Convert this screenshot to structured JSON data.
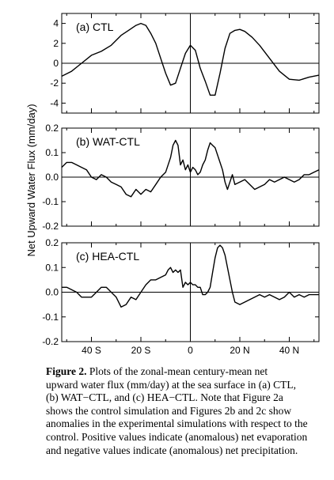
{
  "chart_data": [
    {
      "type": "line",
      "panel_label": "(a) CTL",
      "ylim": [
        -5,
        5
      ],
      "yticks": [
        -4,
        -2,
        0,
        2,
        4
      ],
      "ytick_labels": [
        "-4",
        "-2",
        "0",
        "2",
        "4"
      ],
      "xlim": [
        -52,
        52
      ],
      "series": [
        {
          "x": [
            -52,
            -48,
            -45,
            -40,
            -36,
            -32,
            -28,
            -25,
            -22,
            -20,
            -18,
            -16,
            -14,
            -12,
            -10,
            -8,
            -6,
            -4,
            -2,
            0,
            2,
            4,
            6,
            8,
            10,
            12,
            14,
            16,
            18,
            20,
            22,
            25,
            28,
            32,
            36,
            40,
            44,
            48,
            52
          ],
          "y": [
            -1.3,
            -0.8,
            -0.2,
            0.8,
            1.2,
            1.8,
            2.8,
            3.3,
            3.8,
            4.0,
            3.8,
            3.0,
            2.0,
            0.5,
            -1.0,
            -2.2,
            -2.0,
            -0.5,
            1.0,
            1.8,
            1.3,
            -0.5,
            -1.8,
            -3.2,
            -3.2,
            -1.0,
            1.5,
            3.0,
            3.3,
            3.4,
            3.2,
            2.6,
            1.8,
            0.5,
            -0.8,
            -1.6,
            -1.7,
            -1.4,
            -1.2
          ]
        }
      ]
    },
    {
      "type": "line",
      "panel_label": "(b) WAT-CTL",
      "ylim": [
        -0.2,
        0.2
      ],
      "yticks": [
        -0.2,
        -0.1,
        0.0,
        0.1,
        0.2
      ],
      "ytick_labels": [
        "-0.2",
        "-0.1",
        "0.0",
        "0.1",
        "0.2"
      ],
      "xlim": [
        -52,
        52
      ],
      "series": [
        {
          "x": [
            -52,
            -50,
            -48,
            -46,
            -44,
            -42,
            -40,
            -38,
            -36,
            -34,
            -32,
            -30,
            -28,
            -26,
            -24,
            -22,
            -20,
            -18,
            -16,
            -14,
            -12,
            -10,
            -8,
            -7,
            -6,
            -5,
            -4,
            -3,
            -2,
            -1,
            0,
            1,
            2,
            3,
            4,
            5,
            6,
            7,
            8,
            9,
            10,
            12,
            13,
            14,
            15,
            16,
            17,
            18,
            20,
            22,
            24,
            26,
            28,
            30,
            32,
            34,
            36,
            38,
            40,
            42,
            44,
            46,
            48,
            50,
            52
          ],
          "y": [
            0.04,
            0.06,
            0.06,
            0.05,
            0.04,
            0.03,
            0.0,
            -0.01,
            0.01,
            0.0,
            -0.02,
            -0.03,
            -0.04,
            -0.07,
            -0.08,
            -0.05,
            -0.07,
            -0.05,
            -0.06,
            -0.03,
            0.0,
            0.02,
            0.08,
            0.13,
            0.15,
            0.13,
            0.05,
            0.07,
            0.03,
            0.05,
            0.02,
            0.04,
            0.03,
            0.01,
            0.02,
            0.05,
            0.07,
            0.11,
            0.14,
            0.13,
            0.12,
            0.06,
            0.03,
            -0.02,
            -0.05,
            -0.02,
            0.01,
            -0.03,
            -0.02,
            -0.01,
            -0.03,
            -0.05,
            -0.04,
            -0.03,
            -0.01,
            -0.02,
            -0.01,
            0.0,
            -0.01,
            -0.02,
            -0.01,
            0.01,
            0.01,
            0.02,
            0.03
          ]
        }
      ]
    },
    {
      "type": "line",
      "panel_label": "(c) HEA-CTL",
      "ylim": [
        -0.2,
        0.2
      ],
      "yticks": [
        -0.2,
        -0.1,
        0.0,
        0.1,
        0.2
      ],
      "ytick_labels": [
        "-0.2",
        "-0.1",
        "0.0",
        "0.1",
        "0.2"
      ],
      "xlim": [
        -52,
        52
      ],
      "series": [
        {
          "x": [
            -52,
            -50,
            -48,
            -46,
            -44,
            -42,
            -40,
            -38,
            -36,
            -34,
            -32,
            -30,
            -28,
            -26,
            -24,
            -22,
            -20,
            -18,
            -16,
            -14,
            -12,
            -10,
            -9,
            -8,
            -7,
            -6,
            -5,
            -4,
            -3,
            -2,
            -1,
            0,
            1,
            2,
            3,
            4,
            5,
            6,
            7,
            8,
            9,
            10,
            11,
            12,
            13,
            14,
            15,
            16,
            17,
            18,
            20,
            22,
            24,
            26,
            28,
            30,
            32,
            34,
            36,
            38,
            40,
            42,
            44,
            46,
            48,
            50,
            52
          ],
          "y": [
            0.02,
            0.02,
            0.01,
            0.0,
            -0.02,
            -0.02,
            -0.02,
            0.0,
            0.02,
            0.02,
            0.0,
            -0.02,
            -0.06,
            -0.05,
            -0.02,
            -0.03,
            0.0,
            0.03,
            0.05,
            0.05,
            0.06,
            0.07,
            0.09,
            0.1,
            0.08,
            0.09,
            0.08,
            0.09,
            0.02,
            0.04,
            0.03,
            0.04,
            0.03,
            0.03,
            0.02,
            0.02,
            -0.01,
            -0.01,
            0.0,
            0.02,
            0.08,
            0.14,
            0.18,
            0.19,
            0.18,
            0.15,
            0.1,
            0.05,
            0.0,
            -0.04,
            -0.05,
            -0.04,
            -0.03,
            -0.02,
            -0.01,
            -0.02,
            -0.01,
            -0.02,
            -0.03,
            -0.02,
            0.0,
            -0.02,
            -0.01,
            -0.02,
            -0.01,
            -0.01,
            -0.01
          ]
        }
      ]
    }
  ],
  "x_axis": {
    "ticks": [
      -40,
      -20,
      0,
      20,
      40
    ],
    "tick_labels": [
      "40 S",
      "20 S",
      "0",
      "20 N",
      "40 N"
    ],
    "minor_ticks": [
      -50,
      -30,
      -10,
      10,
      30,
      50
    ]
  },
  "ylabel": "Net Upward Water Flux (mm/day)",
  "caption": {
    "label": "Figure 2.",
    "lines": [
      "Plots of the zonal-mean century-mean net",
      "upward water flux (mm/day) at the sea surface in (a) CTL,",
      "(b) WAT−CTL, and (c) HEA−CTL. Note that Figure 2a",
      "shows the control simulation and Figures 2b and 2c show",
      "anomalies in the experimental simulations with respect to the",
      "control. Positive values indicate (anomalous) net evaporation",
      "and negative values indicate (anomalous) net precipitation."
    ]
  }
}
